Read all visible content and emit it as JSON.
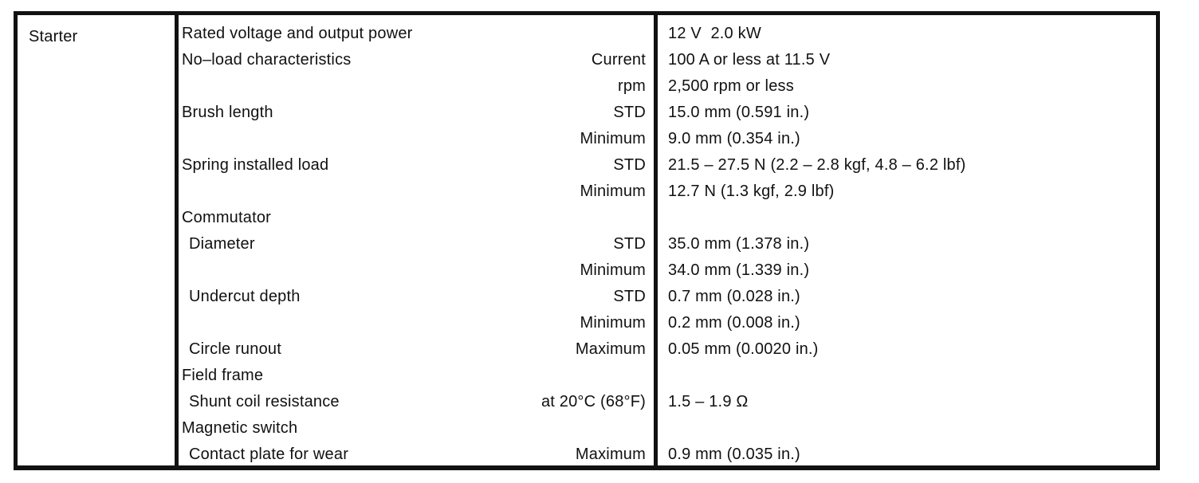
{
  "table": {
    "component": "Starter",
    "rows": [
      {
        "item": "Rated voltage and output power",
        "qualifier": "",
        "value": "12 V  2.0 kW",
        "indent": false
      },
      {
        "item": "No–load characteristics",
        "qualifier": "Current",
        "value": "100 A or less at 11.5 V",
        "indent": false
      },
      {
        "item": "",
        "qualifier": "rpm",
        "value": "2,500 rpm or less",
        "indent": false
      },
      {
        "item": "Brush length",
        "qualifier": "STD",
        "value": "15.0 mm (0.591 in.)",
        "indent": false
      },
      {
        "item": "",
        "qualifier": "Minimum",
        "value": "9.0 mm (0.354 in.)",
        "indent": false
      },
      {
        "item": "Spring installed load",
        "qualifier": "STD",
        "value": "21.5 – 27.5 N (2.2 – 2.8 kgf, 4.8 – 6.2 lbf)",
        "indent": false
      },
      {
        "item": "",
        "qualifier": "Minimum",
        "value": "12.7 N (1.3 kgf, 2.9 lbf)",
        "indent": false
      },
      {
        "item": "Commutator",
        "qualifier": "",
        "value": "",
        "indent": false
      },
      {
        "item": "Diameter",
        "qualifier": "STD",
        "value": "35.0 mm (1.378 in.)",
        "indent": true
      },
      {
        "item": "",
        "qualifier": "Minimum",
        "value": "34.0 mm (1.339 in.)",
        "indent": false
      },
      {
        "item": "Undercut depth",
        "qualifier": "STD",
        "value": "0.7 mm (0.028 in.)",
        "indent": true
      },
      {
        "item": "",
        "qualifier": "Minimum",
        "value": "0.2 mm (0.008 in.)",
        "indent": false
      },
      {
        "item": "Circle runout",
        "qualifier": "Maximum",
        "value": "0.05 mm (0.0020 in.)",
        "indent": true
      },
      {
        "item": "Field frame",
        "qualifier": "",
        "value": "",
        "indent": false
      },
      {
        "item": "Shunt coil resistance",
        "qualifier": "at 20°C (68°F)",
        "value": "1.5 – 1.9 Ω",
        "indent": true
      },
      {
        "item": "Magnetic switch",
        "qualifier": "",
        "value": "",
        "indent": false
      },
      {
        "item": "Contact plate for wear",
        "qualifier": "Maximum",
        "value": "0.9 mm (0.035 in.)",
        "indent": true
      }
    ]
  },
  "colors": {
    "text": "#111111",
    "border": "#111111",
    "background": "#ffffff"
  }
}
